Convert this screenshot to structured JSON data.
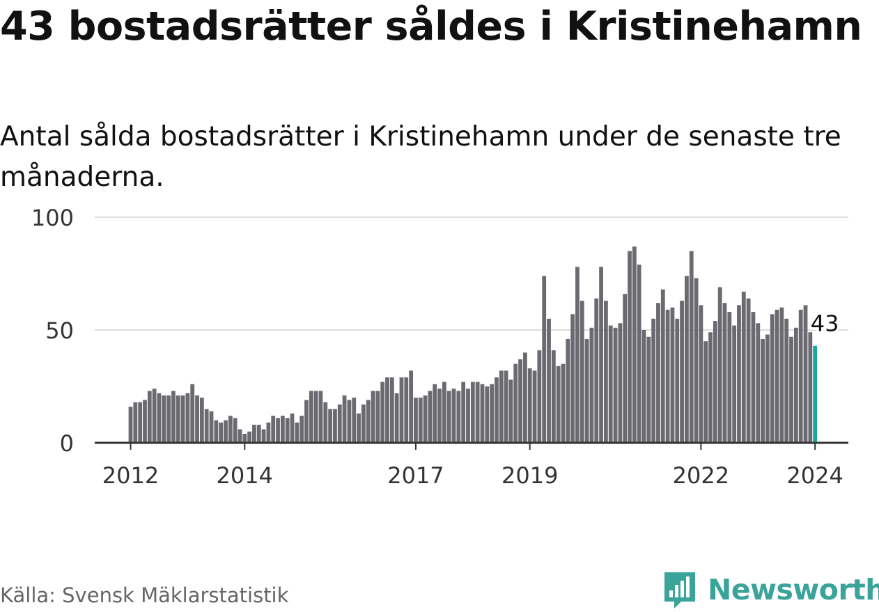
{
  "title": "43 bostadsrätter såldes i Kristinehamn",
  "subtitle": "Antal sålda bostadsrätter i Kristinehamn under de senaste tre månaderna.",
  "source": "Källa: Svensk Mäklarstatistik",
  "brand": "Newsworthy",
  "colors": {
    "bar": "#6b6a70",
    "highlight": "#13a9a0",
    "grid": "#dddddd",
    "axis": "#333333",
    "brand": "#3aa39a"
  },
  "chart_data": {
    "type": "bar",
    "title": "43 bostadsrätter såldes i Kristinehamn",
    "xlabel": "",
    "ylabel": "",
    "ylim": [
      0,
      100
    ],
    "yticks": [
      0,
      50,
      100
    ],
    "xticks": [
      {
        "label": "2012",
        "index": 0
      },
      {
        "label": "2014",
        "index": 24
      },
      {
        "label": "2017",
        "index": 60
      },
      {
        "label": "2019",
        "index": 84
      },
      {
        "label": "2022",
        "index": 120
      },
      {
        "label": "2024",
        "index": 144
      }
    ],
    "start": "2012-01",
    "highlight_label": "43",
    "values": [
      16,
      18,
      18,
      19,
      23,
      24,
      22,
      21,
      21,
      23,
      21,
      21,
      22,
      26,
      21,
      20,
      15,
      14,
      10,
      9,
      10,
      12,
      11,
      6,
      4,
      5,
      8,
      8,
      6,
      9,
      12,
      11,
      12,
      11,
      13,
      9,
      12,
      19,
      23,
      23,
      23,
      18,
      15,
      15,
      17,
      21,
      19,
      20,
      13,
      17,
      19,
      23,
      23,
      27,
      29,
      29,
      22,
      29,
      29,
      32,
      20,
      20,
      21,
      23,
      26,
      24,
      27,
      23,
      24,
      23,
      27,
      24,
      27,
      27,
      26,
      25,
      26,
      29,
      32,
      32,
      28,
      35,
      37,
      40,
      33,
      32,
      41,
      74,
      55,
      41,
      34,
      35,
      46,
      57,
      78,
      63,
      46,
      51,
      64,
      78,
      63,
      52,
      51,
      53,
      66,
      85,
      87,
      79,
      50,
      47,
      55,
      62,
      68,
      59,
      60,
      55,
      63,
      74,
      85,
      73,
      61,
      45,
      49,
      54,
      69,
      62,
      58,
      52,
      61,
      67,
      64,
      58,
      53,
      46,
      48,
      57,
      59,
      60,
      55,
      47,
      51,
      59,
      61,
      49,
      43
    ]
  }
}
